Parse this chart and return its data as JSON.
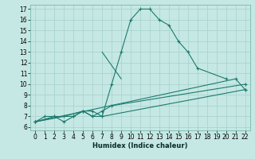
{
  "xlabel": "Humidex (Indice chaleur)",
  "background_color": "#c5e8e4",
  "grid_color": "#aad4ce",
  "line_color": "#1e7a6e",
  "xlim": [
    -0.5,
    22.5
  ],
  "ylim": [
    5.7,
    17.4
  ],
  "xticks": [
    0,
    1,
    2,
    3,
    4,
    5,
    6,
    7,
    8,
    9,
    10,
    11,
    12,
    13,
    14,
    15,
    16,
    17,
    18,
    19,
    20,
    21,
    22
  ],
  "yticks": [
    6,
    7,
    8,
    9,
    10,
    11,
    12,
    13,
    14,
    15,
    16,
    17
  ],
  "lines": [
    {
      "x": [
        0,
        1,
        2,
        3,
        4,
        5,
        6,
        7,
        8,
        9,
        10,
        11,
        12,
        13,
        14,
        15,
        16,
        17,
        20
      ],
      "y": [
        6.5,
        7,
        7,
        6.5,
        7,
        7.5,
        7.5,
        7,
        10,
        13,
        16,
        17,
        17,
        16,
        15.5,
        14,
        13,
        11.5,
        10.5
      ],
      "marker": true
    },
    {
      "x": [
        7,
        9
      ],
      "y": [
        13,
        10.5
      ],
      "marker": false
    },
    {
      "x": [
        0,
        3,
        5,
        6,
        7,
        8,
        22
      ],
      "y": [
        6.5,
        7,
        7.5,
        7,
        7.5,
        8,
        10
      ],
      "marker": true
    },
    {
      "x": [
        0,
        2,
        4,
        5,
        6,
        7,
        22
      ],
      "y": [
        6.5,
        7,
        7,
        7.5,
        7,
        7,
        9.5
      ],
      "marker": true
    },
    {
      "x": [
        0,
        21,
        22
      ],
      "y": [
        6.5,
        10.5,
        9.5
      ],
      "marker": true
    }
  ]
}
